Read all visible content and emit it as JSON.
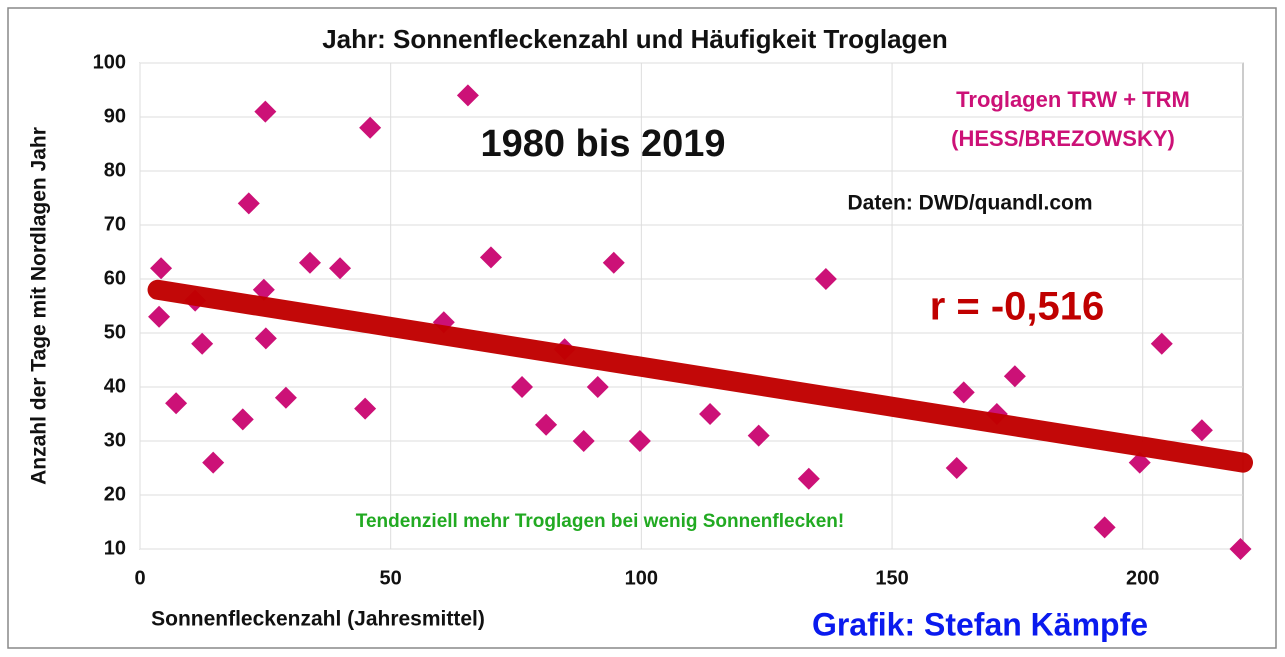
{
  "chart_data": {
    "type": "scatter",
    "title": "Jahr: Sonnenfleckenzahl und Häufigkeit Troglagen",
    "x_label": "Sonnenfleckenzahl (Jahresmittel)",
    "y_label": "Anzahl der Tage mit Nordlagen Jahr",
    "annotations": [
      "1980 bis 2019",
      "Troglagen TRW + TRM",
      "(HESS/BREZOWSKY)",
      "Daten: DWD/quandl.com",
      "r = -0,516",
      "Tendenziell mehr Troglagen bei wenig Sonnenflecken!",
      "Grafik: Stefan Kämpfe"
    ],
    "series": [
      {
        "name": "Troglagen TRW + TRM",
        "color": "#cc1177",
        "x": [
          3.8,
          4.2,
          7.2,
          11,
          12.4,
          14.6,
          20.5,
          21.7,
          24.7,
          25,
          25.1,
          29.1,
          33.9,
          39.9,
          44.9,
          45.9,
          60.6,
          65.4,
          70,
          76.2,
          81,
          84.7,
          88.5,
          91.3,
          94.5,
          99.7,
          113.7,
          123.4,
          133.4,
          136.8,
          162.9,
          164.3,
          170.9,
          174.5,
          192.4,
          199.4,
          203.8,
          211.8,
          219.5
        ],
        "values": [
          53,
          62,
          37,
          56,
          48,
          26,
          34,
          74,
          58,
          91,
          49,
          38,
          63,
          62,
          36,
          88,
          52,
          94,
          64,
          40,
          33,
          47,
          30,
          40,
          63,
          30,
          35,
          31,
          23,
          60,
          25,
          39,
          35,
          42,
          14,
          26,
          48,
          32,
          10
        ]
      }
    ],
    "trendline": {
      "color": "#c00000",
      "x": [
        3.5,
        220
      ],
      "values": [
        58,
        26
      ]
    },
    "xlim": [
      0,
      220
    ],
    "xticks": [
      0,
      50,
      100,
      150,
      200
    ],
    "ylim": [
      10,
      100
    ],
    "yticks": [
      10,
      20,
      30,
      40,
      50,
      60,
      70,
      80,
      90,
      100
    ],
    "grid": true
  }
}
